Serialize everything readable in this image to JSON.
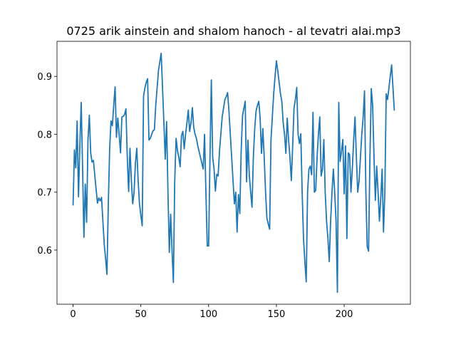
{
  "chart_data": {
    "type": "line",
    "title": "0725 arik ainstein and shalom hanoch - al tevatri alai.mp3",
    "color": "#1f77b4",
    "x": [
      0,
      1,
      2,
      3,
      4,
      5,
      6,
      7,
      8,
      9,
      10,
      11,
      12,
      13,
      14,
      15,
      16,
      17,
      18,
      19,
      20,
      21,
      22,
      23,
      24,
      25,
      26,
      27,
      28,
      29,
      30,
      31,
      32,
      33,
      34,
      35,
      36,
      37,
      38,
      39,
      40,
      41,
      42,
      43,
      44,
      45,
      46,
      47,
      48,
      49,
      50,
      51,
      52,
      53,
      54,
      55,
      56,
      57,
      58,
      59,
      60,
      61,
      62,
      63,
      64,
      65,
      66,
      67,
      68,
      69,
      70,
      71,
      72,
      73,
      74,
      75,
      76,
      77,
      78,
      79,
      80,
      81,
      82,
      83,
      84,
      85,
      86,
      87,
      88,
      89,
      90,
      91,
      92,
      93,
      94,
      95,
      96,
      97,
      98,
      99,
      100,
      101,
      102,
      103,
      104,
      105,
      106,
      107,
      108,
      109,
      110,
      111,
      112,
      113,
      114,
      115,
      116,
      117,
      118,
      119,
      120,
      121,
      122,
      123,
      124,
      125,
      126,
      127,
      128,
      129,
      130,
      131,
      132,
      133,
      134,
      135,
      136,
      137,
      138,
      139,
      140,
      141,
      142,
      143,
      144,
      145,
      146,
      147,
      148,
      149,
      150,
      151,
      152,
      153,
      154,
      155,
      156,
      157,
      158,
      159,
      160,
      161,
      162,
      163,
      164,
      165,
      166,
      167,
      168,
      169,
      170,
      171,
      172,
      173,
      174,
      175,
      176,
      177,
      178,
      179,
      180,
      181,
      182,
      183,
      184,
      185,
      186,
      187,
      188,
      189,
      190,
      191,
      192,
      193,
      194,
      195,
      196,
      197,
      198,
      199,
      200,
      201,
      202,
      203,
      204,
      205,
      206,
      207,
      208,
      209,
      210,
      211,
      212,
      213,
      214,
      215,
      216,
      217,
      218,
      219,
      220,
      221,
      222,
      223,
      224,
      225,
      226,
      227,
      228,
      229,
      230,
      231,
      232,
      233,
      234,
      235,
      236,
      237
    ],
    "values": [
      0.677,
      0.773,
      0.742,
      0.823,
      0.692,
      0.78,
      0.855,
      0.745,
      0.622,
      0.714,
      0.648,
      0.79,
      0.833,
      0.768,
      0.752,
      0.755,
      0.73,
      0.705,
      0.681,
      0.69,
      0.685,
      0.691,
      0.65,
      0.61,
      0.585,
      0.558,
      0.68,
      0.775,
      0.823,
      0.815,
      0.85,
      0.882,
      0.795,
      0.828,
      0.8,
      0.768,
      0.83,
      0.831,
      0.834,
      0.844,
      0.76,
      0.701,
      0.776,
      0.72,
      0.68,
      0.7,
      0.75,
      0.776,
      0.72,
      0.68,
      0.66,
      0.642,
      0.866,
      0.88,
      0.89,
      0.896,
      0.79,
      0.793,
      0.8,
      0.806,
      0.808,
      0.85,
      0.88,
      0.91,
      0.925,
      0.94,
      0.88,
      0.82,
      0.757,
      0.822,
      0.7,
      0.596,
      0.662,
      0.6,
      0.544,
      0.72,
      0.793,
      0.772,
      0.76,
      0.744,
      0.798,
      0.805,
      0.775,
      0.8,
      0.82,
      0.842,
      0.805,
      0.82,
      0.846,
      0.812,
      0.8,
      0.793,
      0.78,
      0.77,
      0.76,
      0.75,
      0.74,
      0.8,
      0.7,
      0.607,
      0.607,
      0.76,
      0.894,
      0.76,
      0.74,
      0.702,
      0.731,
      0.728,
      0.77,
      0.8,
      0.83,
      0.845,
      0.86,
      0.865,
      0.872,
      0.84,
      0.8,
      0.76,
      0.72,
      0.68,
      0.7,
      0.631,
      0.696,
      0.663,
      0.77,
      0.832,
      0.845,
      0.857,
      0.718,
      0.79,
      0.73,
      0.7,
      0.674,
      0.76,
      0.81,
      0.84,
      0.85,
      0.857,
      0.828,
      0.767,
      0.81,
      0.76,
      0.7,
      0.655,
      0.645,
      0.636,
      0.79,
      0.83,
      0.87,
      0.9,
      0.927,
      0.91,
      0.89,
      0.87,
      0.857,
      0.82,
      0.8,
      0.767,
      0.828,
      0.79,
      0.76,
      0.72,
      0.78,
      0.845,
      0.86,
      0.881,
      0.8,
      0.784,
      0.801,
      0.7,
      0.62,
      0.58,
      0.545,
      0.7,
      0.74,
      0.745,
      0.73,
      0.838,
      0.7,
      0.703,
      0.76,
      0.8,
      0.83,
      0.728,
      0.74,
      0.791,
      0.7,
      0.65,
      0.62,
      0.58,
      0.65,
      0.7,
      0.74,
      0.7,
      0.65,
      0.527,
      0.855,
      0.753,
      0.77,
      0.791,
      0.697,
      0.78,
      0.62,
      0.768,
      0.765,
      0.7,
      0.74,
      0.79,
      0.83,
      0.76,
      0.7,
      0.72,
      0.76,
      0.8,
      0.83,
      0.875,
      0.7,
      0.606,
      0.598,
      0.76,
      0.879,
      0.85,
      0.76,
      0.686,
      0.745,
      0.7,
      0.65,
      0.69,
      0.74,
      0.631,
      0.7,
      0.87,
      0.86,
      0.88,
      0.9,
      0.92,
      0.88,
      0.841
    ],
    "xlim": [
      -11.85,
      248.85
    ],
    "xticks": [
      0,
      50,
      100,
      150,
      200
    ],
    "ylim": [
      0.5064,
      0.9606
    ],
    "yticks": [
      0.6,
      0.7,
      0.8,
      0.9
    ]
  }
}
